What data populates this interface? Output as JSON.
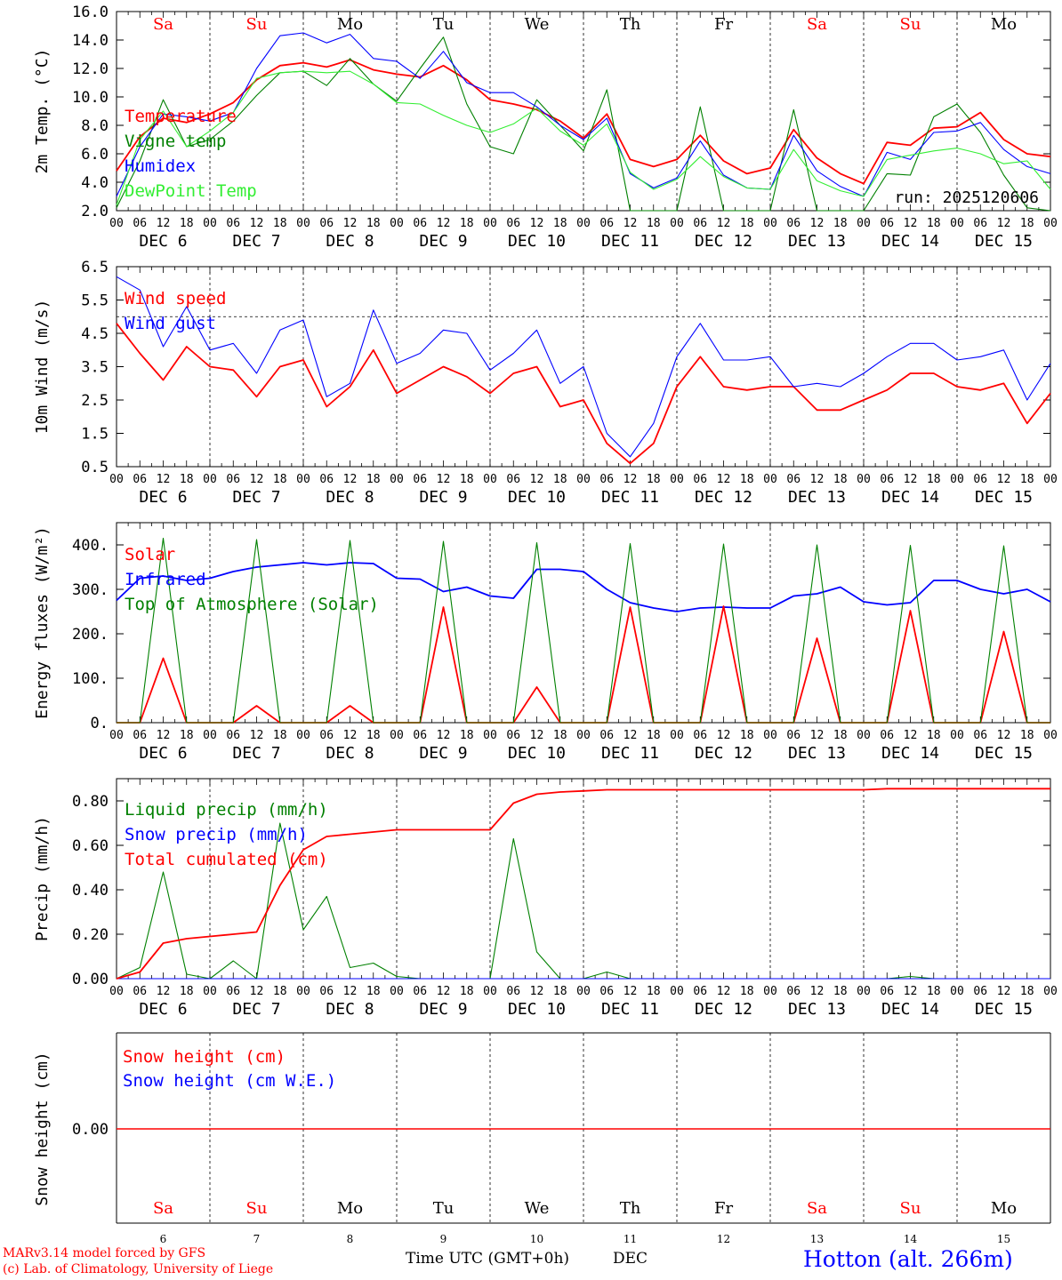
{
  "days": [
    "6",
    "7",
    "8",
    "9",
    "10",
    "11",
    "12",
    "13",
    "14",
    "15"
  ],
  "weekdays": [
    "Sa",
    "Su",
    "Mo",
    "Tu",
    "We",
    "Th",
    "Fr",
    "Sa",
    "Su",
    "Mo"
  ],
  "weekend_flags": [
    true,
    true,
    false,
    false,
    false,
    false,
    false,
    true,
    true,
    false
  ],
  "hour_labels": [
    "00",
    "06",
    "12",
    "18"
  ],
  "end_hour_label": "00",
  "month": "DEC",
  "colors": {
    "red": "#ff0000",
    "green": "#008000",
    "blue": "#0000ff",
    "lightgreen": "#33ee33",
    "grid": "#000000",
    "weekend": "#ff0000"
  },
  "run_label": "run: 2025120606",
  "x_axis_title": "Time UTC (GMT+0h)",
  "footer": {
    "model": "MARv3.14 model forced by GFS",
    "copyright": "(c) Lab. of Climatology, University of Liege",
    "station": "Hotton (alt. 266m)"
  },
  "chart_data": [
    {
      "type": "line",
      "title": "2m Temp. (°C)",
      "ylabel": "2m Temp. (°C)",
      "ylim": [
        2.0,
        16.0
      ],
      "yticks": [
        "2.0",
        "4.0",
        "6.0",
        "8.0",
        "10.0",
        "12.0",
        "14.0",
        "16.0"
      ],
      "legend": [
        "Temperature",
        "Vigne temp",
        "Humidex",
        "DewPoint Temp"
      ],
      "x_days": [
        0,
        0.25,
        0.5,
        0.75,
        1,
        1.25,
        1.5,
        1.75,
        2,
        2.25,
        2.5,
        2.75,
        3,
        3.25,
        3.5,
        3.75,
        4,
        4.25,
        4.5,
        4.75,
        5,
        5.25,
        5.5,
        5.75,
        6,
        6.25,
        6.5,
        6.75,
        7,
        7.25,
        7.5,
        7.75,
        8,
        8.25,
        8.5,
        8.75,
        9,
        9.25,
        9.5,
        9.75,
        10
      ],
      "series": [
        {
          "name": "Temperature",
          "color": "red",
          "values": [
            4.8,
            7.2,
            8.5,
            8.2,
            8.8,
            9.6,
            11.2,
            12.2,
            12.4,
            12.1,
            12.6,
            11.9,
            11.6,
            11.4,
            12.2,
            11.2,
            9.8,
            9.5,
            9.1,
            8.3,
            7.1,
            8.8,
            5.6,
            5.1,
            5.6,
            7.3,
            5.5,
            4.6,
            5.0,
            7.7,
            5.7,
            4.6,
            3.9,
            6.8,
            6.6,
            7.8,
            7.9,
            8.9,
            7.0,
            6.0,
            5.8
          ]
        },
        {
          "name": "Vigne temp",
          "color": "green",
          "values": [
            2.2,
            5.5,
            9.8,
            6.5,
            7.0,
            8.3,
            10.1,
            11.7,
            11.8,
            10.8,
            12.7,
            10.9,
            9.7,
            12.0,
            14.2,
            9.5,
            6.5,
            6.0,
            9.8,
            8.0,
            6.2,
            10.5,
            2.0,
            2.0,
            2.0,
            9.3,
            2.0,
            2.0,
            2.0,
            9.1,
            2.0,
            2.0,
            2.0,
            4.6,
            4.5,
            8.6,
            9.5,
            7.5,
            4.5,
            2.2,
            2.0
          ]
        },
        {
          "name": "Humidex",
          "color": "blue",
          "values": [
            3.0,
            6.5,
            8.8,
            8.6,
            8.3,
            8.9,
            12.0,
            14.3,
            14.5,
            13.8,
            14.4,
            12.7,
            12.5,
            11.3,
            13.2,
            11.0,
            10.3,
            10.3,
            9.3,
            8.0,
            7.0,
            8.5,
            4.6,
            3.6,
            4.3,
            6.9,
            4.5,
            3.6,
            3.5,
            7.3,
            4.8,
            3.7,
            3.0,
            6.1,
            5.6,
            7.5,
            7.6,
            8.2,
            6.3,
            5.1,
            4.6
          ]
        },
        {
          "name": "DewPoint Temp",
          "color": "lightgreen",
          "values": [
            2.4,
            7.0,
            9.0,
            6.5,
            7.6,
            8.9,
            11.3,
            11.7,
            11.8,
            11.7,
            11.8,
            10.9,
            9.6,
            9.5,
            8.7,
            8.0,
            7.5,
            8.1,
            9.2,
            7.6,
            6.6,
            8.1,
            4.7,
            3.5,
            4.2,
            5.8,
            4.4,
            3.6,
            3.5,
            6.3,
            4.1,
            3.4,
            3.0,
            5.6,
            5.9,
            6.2,
            6.4,
            6.0,
            5.3,
            5.5,
            3.5
          ]
        }
      ]
    },
    {
      "type": "line",
      "title": "10m Wind (m/s)",
      "ylabel": "10m Wind (m/s)",
      "ylim": [
        0.5,
        6.5
      ],
      "yticks": [
        "0.5",
        "1.5",
        "2.5",
        "3.5",
        "4.5",
        "5.5",
        "6.5"
      ],
      "reference_line": 5.0,
      "legend": [
        "Wind speed",
        "Wind gust"
      ],
      "x_days": [
        0,
        0.25,
        0.5,
        0.75,
        1,
        1.25,
        1.5,
        1.75,
        2,
        2.25,
        2.5,
        2.75,
        3,
        3.25,
        3.5,
        3.75,
        4,
        4.25,
        4.5,
        4.75,
        5,
        5.25,
        5.5,
        5.75,
        6,
        6.25,
        6.5,
        6.75,
        7,
        7.25,
        7.5,
        7.75,
        8,
        8.25,
        8.5,
        8.75,
        9,
        9.25,
        9.5,
        9.75,
        10
      ],
      "series": [
        {
          "name": "Wind speed",
          "color": "red",
          "values": [
            4.8,
            3.9,
            3.1,
            4.1,
            3.5,
            3.4,
            2.6,
            3.5,
            3.7,
            2.3,
            2.9,
            4.0,
            2.7,
            3.1,
            3.5,
            3.2,
            2.7,
            3.3,
            3.5,
            2.3,
            2.5,
            1.2,
            0.6,
            1.2,
            2.9,
            3.8,
            2.9,
            2.8,
            2.9,
            2.9,
            2.2,
            2.2,
            2.5,
            2.8,
            3.3,
            3.3,
            2.9,
            2.8,
            3.0,
            1.8,
            2.7
          ]
        },
        {
          "name": "Wind gust",
          "color": "blue",
          "values": [
            6.2,
            5.8,
            4.1,
            5.3,
            4.0,
            4.2,
            3.3,
            4.6,
            4.9,
            2.6,
            3.0,
            5.2,
            3.6,
            3.9,
            4.6,
            4.5,
            3.4,
            3.9,
            4.6,
            3.0,
            3.5,
            1.5,
            0.8,
            1.8,
            3.8,
            4.8,
            3.7,
            3.7,
            3.8,
            2.9,
            3.0,
            2.9,
            3.3,
            3.8,
            4.2,
            4.2,
            3.7,
            3.8,
            4.0,
            2.5,
            3.6
          ]
        }
      ]
    },
    {
      "type": "line",
      "title": "Energy fluxes (W/m²)",
      "ylabel": "Energy fluxes (W/m²)",
      "ylim": [
        0,
        450
      ],
      "yticks": [
        "0.",
        "100.",
        "200.",
        "300.",
        "400."
      ],
      "legend": [
        "Solar",
        "Infrared",
        "Top of Atmosphere (Solar)"
      ],
      "x_days": [
        0,
        0.25,
        0.5,
        0.75,
        1,
        1.25,
        1.5,
        1.75,
        2,
        2.25,
        2.5,
        2.75,
        3,
        3.25,
        3.5,
        3.75,
        4,
        4.25,
        4.5,
        4.75,
        5,
        5.25,
        5.5,
        5.75,
        6,
        6.25,
        6.5,
        6.75,
        7,
        7.25,
        7.5,
        7.75,
        8,
        8.25,
        8.5,
        8.75,
        9,
        9.25,
        9.5,
        9.75,
        10
      ],
      "series": [
        {
          "name": "Infrared",
          "color": "blue",
          "values": [
            275,
            325,
            330,
            320,
            325,
            340,
            350,
            355,
            360,
            355,
            360,
            358,
            325,
            323,
            295,
            305,
            285,
            280,
            345,
            345,
            340,
            300,
            270,
            258,
            250,
            258,
            260,
            258,
            258,
            285,
            290,
            305,
            272,
            265,
            270,
            320,
            320,
            300,
            290,
            300,
            272
          ]
        },
        {
          "name": "Solar",
          "color": "red",
          "values": [
            0,
            0,
            145,
            0,
            0,
            0,
            38,
            0,
            0,
            0,
            38,
            0,
            0,
            0,
            260,
            0,
            0,
            0,
            80,
            0,
            0,
            0,
            260,
            0,
            0,
            0,
            262,
            0,
            0,
            0,
            190,
            0,
            0,
            0,
            252,
            0,
            0,
            0,
            205,
            0,
            0
          ]
        },
        {
          "name": "Top of Atmosphere (Solar)",
          "color": "green",
          "values": [
            0,
            0,
            415,
            0,
            0,
            0,
            412,
            0,
            0,
            0,
            410,
            0,
            0,
            0,
            408,
            0,
            0,
            0,
            405,
            0,
            0,
            0,
            403,
            0,
            0,
            0,
            402,
            0,
            0,
            0,
            400,
            0,
            0,
            0,
            399,
            0,
            0,
            0,
            398,
            0,
            0
          ]
        }
      ]
    },
    {
      "type": "line",
      "title": "Precip (mm/h)",
      "ylabel": "Precip (mm/h)",
      "ylim": [
        0.0,
        0.9
      ],
      "yticks": [
        "0.00",
        "0.20",
        "0.40",
        "0.60",
        "0.80"
      ],
      "legend": [
        "Liquid precip (mm/h)",
        "Snow precip (mm/h)",
        "Total cumulated (cm)"
      ],
      "x_days": [
        0,
        0.25,
        0.5,
        0.75,
        1,
        1.25,
        1.5,
        1.75,
        2,
        2.25,
        2.5,
        2.75,
        3,
        3.25,
        3.5,
        3.75,
        4,
        4.25,
        4.5,
        4.75,
        5,
        5.25,
        5.5,
        5.75,
        6,
        6.25,
        6.5,
        6.75,
        7,
        7.25,
        7.5,
        7.75,
        8,
        8.25,
        8.5,
        8.75,
        9,
        9.25,
        9.5,
        9.75,
        10
      ],
      "series": [
        {
          "name": "Liquid precip (mm/h)",
          "color": "green",
          "values": [
            0.0,
            0.05,
            0.48,
            0.02,
            0.0,
            0.08,
            0.0,
            0.7,
            0.22,
            0.37,
            0.05,
            0.07,
            0.01,
            0.0,
            0.0,
            0.0,
            0.0,
            0.63,
            0.12,
            0.0,
            0.0,
            0.03,
            0.0,
            0.0,
            0.0,
            0.0,
            0.0,
            0.0,
            0.0,
            0.0,
            0.0,
            0.0,
            0.0,
            0.0,
            0.01,
            0.0,
            0.0,
            0.0,
            0.0,
            0.0,
            0.0
          ]
        },
        {
          "name": "Snow precip (mm/h)",
          "color": "blue",
          "values": [
            0,
            0,
            0,
            0,
            0,
            0,
            0,
            0,
            0,
            0,
            0,
            0,
            0,
            0,
            0,
            0,
            0,
            0,
            0,
            0,
            0,
            0,
            0,
            0,
            0,
            0,
            0,
            0,
            0,
            0,
            0,
            0,
            0,
            0,
            0,
            0,
            0,
            0,
            0,
            0,
            0
          ]
        },
        {
          "name": "Total cumulated (cm)",
          "color": "red",
          "values": [
            0.0,
            0.03,
            0.16,
            0.18,
            0.19,
            0.2,
            0.21,
            0.42,
            0.58,
            0.64,
            0.65,
            0.66,
            0.67,
            0.67,
            0.67,
            0.67,
            0.67,
            0.79,
            0.83,
            0.84,
            0.845,
            0.85,
            0.85,
            0.85,
            0.85,
            0.85,
            0.85,
            0.85,
            0.85,
            0.85,
            0.85,
            0.85,
            0.85,
            0.855,
            0.855,
            0.855,
            0.855,
            0.855,
            0.855,
            0.855,
            0.855
          ]
        }
      ]
    },
    {
      "type": "line",
      "title": "Snow height (cm)",
      "ylabel": "Snow height (cm)",
      "yticks": [
        "0.00"
      ],
      "legend": [
        "Snow height (cm)",
        "Snow height (cm W.E.)"
      ],
      "series": [
        {
          "name": "Snow height (cm)",
          "color": "red",
          "values": [
            0,
            0
          ]
        },
        {
          "name": "Snow height (cm W.E.)",
          "color": "blue",
          "values": [
            0,
            0
          ]
        }
      ]
    }
  ]
}
